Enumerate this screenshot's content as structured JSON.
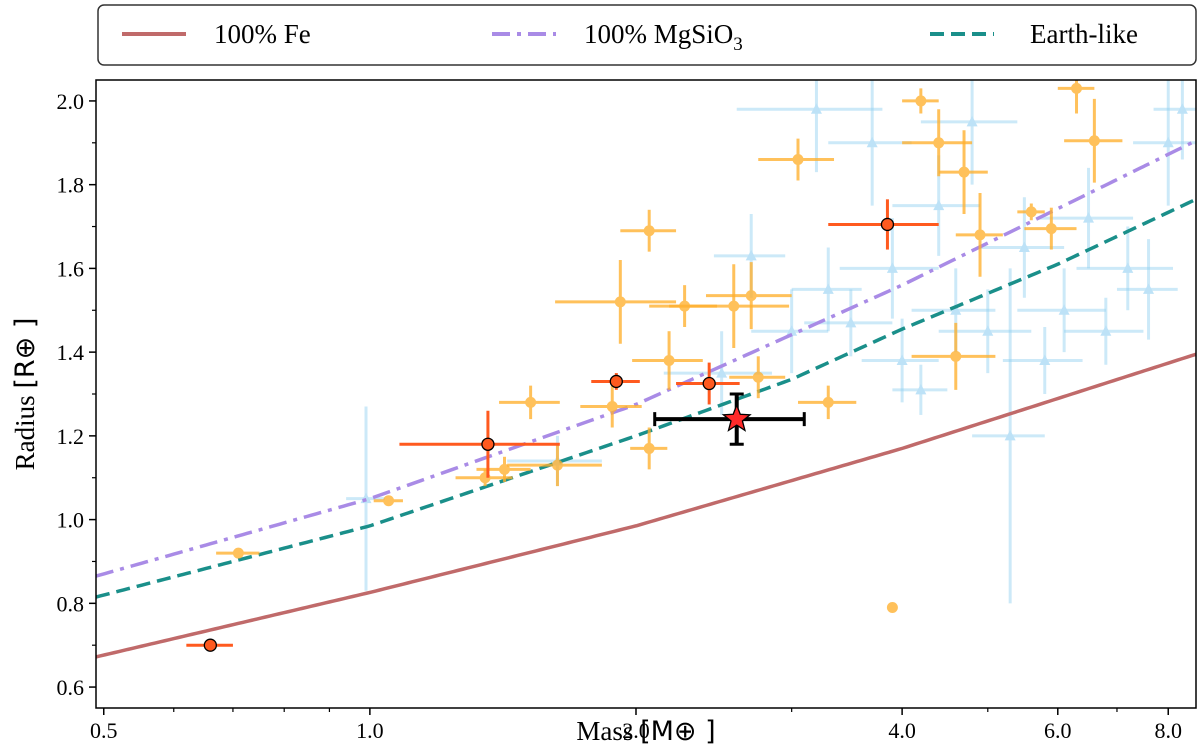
{
  "chart_data": {
    "type": "scatter",
    "x_scale": "log",
    "x_label_text": "Mass",
    "x_label_unit": "[M⊕ ]",
    "y_label_text": "Radius",
    "y_label_unit": "[R⊕ ]",
    "xlim": [
      0.49,
      8.6
    ],
    "ylim": [
      0.55,
      2.05
    ],
    "x_ticks": [
      {
        "value": 0.5,
        "label": "0.5"
      },
      {
        "value": 1.0,
        "label": "1.0"
      },
      {
        "value": 2.0,
        "label": "2.0"
      },
      {
        "value": 4.0,
        "label": "4.0"
      },
      {
        "value": 6.0,
        "label": "6.0"
      },
      {
        "value": 8.0,
        "label": "8.0"
      }
    ],
    "y_ticks": [
      {
        "value": 0.6,
        "label": "0.6"
      },
      {
        "value": 0.8,
        "label": "0.8"
      },
      {
        "value": 1.0,
        "label": "1.0"
      },
      {
        "value": 1.2,
        "label": "1.2"
      },
      {
        "value": 1.4,
        "label": "1.4"
      },
      {
        "value": 1.6,
        "label": "1.6"
      },
      {
        "value": 1.8,
        "label": "1.8"
      },
      {
        "value": 2.0,
        "label": "2.0"
      }
    ],
    "grid": false,
    "legend_position": "top, outside plot",
    "curves": [
      {
        "name": "100% Fe",
        "legend_label": "100% Fe",
        "color": "#c06a6a",
        "style": "solid",
        "points": [
          [
            0.49,
            0.672
          ],
          [
            1.0,
            0.826
          ],
          [
            2.0,
            0.985
          ],
          [
            4.0,
            1.17
          ],
          [
            8.6,
            1.395
          ]
        ]
      },
      {
        "name": "100% MgSiO3",
        "legend_base": "100% MgSiO",
        "legend_sub": "3",
        "color": "#a98be6",
        "style": "dashdot",
        "points": [
          [
            0.49,
            0.865
          ],
          [
            1.0,
            1.05
          ],
          [
            2.0,
            1.275
          ],
          [
            4.0,
            1.56
          ],
          [
            8.6,
            1.905
          ]
        ]
      },
      {
        "name": "Earth-like",
        "legend_label": "Earth-like",
        "color": "#1a8f8a",
        "style": "dashed",
        "points": [
          [
            0.49,
            0.815
          ],
          [
            1.0,
            0.985
          ],
          [
            2.0,
            1.2
          ],
          [
            3.0,
            1.335
          ],
          [
            4.0,
            1.455
          ],
          [
            6.0,
            1.61
          ],
          [
            8.6,
            1.765
          ]
        ]
      }
    ],
    "series_light_blue": {
      "color": "#8fd0f0",
      "points": [
        {
          "x": 0.99,
          "y": 1.05,
          "xerr": 0.05,
          "yerr": 0.22
        },
        {
          "x": 1.63,
          "y": 1.14,
          "xerr": 0.2,
          "yerr": 0.06
        },
        {
          "x": 2.5,
          "y": 1.35,
          "xerr": 0.35,
          "yerr": 0.1
        },
        {
          "x": 2.7,
          "y": 1.63,
          "xerr": 0.25,
          "yerr": 0.1
        },
        {
          "x": 3.0,
          "y": 1.45,
          "xerr": 0.3,
          "yerr": 0.1
        },
        {
          "x": 3.2,
          "y": 1.98,
          "xerr": 0.6,
          "yerr": 0.15
        },
        {
          "x": 3.3,
          "y": 1.55,
          "xerr": 0.3,
          "yerr": 0.1
        },
        {
          "x": 3.5,
          "y": 1.47,
          "xerr": 0.4,
          "yerr": 0.08
        },
        {
          "x": 3.7,
          "y": 1.9,
          "xerr": 0.4,
          "yerr": 0.15
        },
        {
          "x": 3.9,
          "y": 1.6,
          "xerr": 0.5,
          "yerr": 0.12
        },
        {
          "x": 4.0,
          "y": 1.38,
          "xerr": 0.4,
          "yerr": 0.1
        },
        {
          "x": 4.2,
          "y": 1.31,
          "xerr": 0.3,
          "yerr": 0.06
        },
        {
          "x": 4.4,
          "y": 1.75,
          "xerr": 0.5,
          "yerr": 0.12
        },
        {
          "x": 4.6,
          "y": 1.5,
          "xerr": 0.5,
          "yerr": 0.1
        },
        {
          "x": 4.8,
          "y": 1.95,
          "xerr": 0.6,
          "yerr": 0.15
        },
        {
          "x": 5.0,
          "y": 1.45,
          "xerr": 0.6,
          "yerr": 0.1
        },
        {
          "x": 5.3,
          "y": 1.2,
          "xerr": 0.5,
          "yerr": 0.4
        },
        {
          "x": 5.5,
          "y": 1.65,
          "xerr": 0.6,
          "yerr": 0.12
        },
        {
          "x": 5.8,
          "y": 1.38,
          "xerr": 0.6,
          "yerr": 0.08
        },
        {
          "x": 6.1,
          "y": 1.5,
          "xerr": 0.7,
          "yerr": 0.1
        },
        {
          "x": 6.5,
          "y": 1.72,
          "xerr": 0.8,
          "yerr": 0.12
        },
        {
          "x": 6.8,
          "y": 1.45,
          "xerr": 0.7,
          "yerr": 0.08
        },
        {
          "x": 7.2,
          "y": 1.6,
          "xerr": 0.9,
          "yerr": 0.1
        },
        {
          "x": 7.6,
          "y": 1.55,
          "xerr": 0.6,
          "yerr": 0.12
        },
        {
          "x": 8.0,
          "y": 1.9,
          "xerr": 0.7,
          "yerr": 0.15
        },
        {
          "x": 8.3,
          "y": 1.98,
          "xerr": 0.6,
          "yerr": 0.12
        }
      ]
    },
    "series_orange": {
      "color": "#ffb02e",
      "points": [
        {
          "x": 0.71,
          "y": 0.92,
          "xerr": 0.04,
          "yerr": 0.01
        },
        {
          "x": 1.05,
          "y": 1.045,
          "xerr": 0.04,
          "yerr": 0.01
        },
        {
          "x": 1.35,
          "y": 1.1,
          "xerr": 0.1,
          "yerr": 0.02
        },
        {
          "x": 1.42,
          "y": 1.12,
          "xerr": 0.1,
          "yerr": 0.03
        },
        {
          "x": 1.52,
          "y": 1.28,
          "xerr": 0.12,
          "yerr": 0.04
        },
        {
          "x": 1.63,
          "y": 1.13,
          "xerr": 0.2,
          "yerr": 0.05
        },
        {
          "x": 1.88,
          "y": 1.27,
          "xerr": 0.15,
          "yerr": 0.05
        },
        {
          "x": 1.92,
          "y": 1.52,
          "xerr": 0.3,
          "yerr": 0.1
        },
        {
          "x": 2.07,
          "y": 1.69,
          "xerr": 0.15,
          "yerr": 0.05
        },
        {
          "x": 2.07,
          "y": 1.17,
          "xerr": 0.1,
          "yerr": 0.05
        },
        {
          "x": 2.18,
          "y": 1.38,
          "xerr": 0.2,
          "yerr": 0.07
        },
        {
          "x": 2.27,
          "y": 1.51,
          "xerr": 0.2,
          "yerr": 0.05
        },
        {
          "x": 2.58,
          "y": 1.51,
          "xerr": 0.4,
          "yerr": 0.1
        },
        {
          "x": 2.7,
          "y": 1.535,
          "xerr": 0.3,
          "yerr": 0.08
        },
        {
          "x": 2.75,
          "y": 1.34,
          "xerr": 0.2,
          "yerr": 0.05
        },
        {
          "x": 3.05,
          "y": 1.86,
          "xerr": 0.3,
          "yerr": 0.05
        },
        {
          "x": 3.3,
          "y": 1.28,
          "xerr": 0.25,
          "yerr": 0.04
        },
        {
          "x": 3.9,
          "y": 0.79,
          "xerr": 0.03,
          "yerr": 0.01
        },
        {
          "x": 4.2,
          "y": 2.0,
          "xerr": 0.2,
          "yerr": 0.03
        },
        {
          "x": 4.4,
          "y": 1.9,
          "xerr": 0.4,
          "yerr": 0.08
        },
        {
          "x": 4.6,
          "y": 1.39,
          "xerr": 0.5,
          "yerr": 0.08
        },
        {
          "x": 4.7,
          "y": 1.83,
          "xerr": 0.3,
          "yerr": 0.1
        },
        {
          "x": 4.9,
          "y": 1.68,
          "xerr": 0.3,
          "yerr": 0.1
        },
        {
          "x": 5.6,
          "y": 1.735,
          "xerr": 0.2,
          "yerr": 0.02
        },
        {
          "x": 5.9,
          "y": 1.695,
          "xerr": 0.4,
          "yerr": 0.05
        },
        {
          "x": 6.3,
          "y": 2.03,
          "xerr": 0.3,
          "yerr": 0.06
        },
        {
          "x": 6.6,
          "y": 1.905,
          "xerr": 0.5,
          "yerr": 0.1
        }
      ]
    },
    "series_red": {
      "color": "#ff5a1f",
      "points": [
        {
          "x": 0.66,
          "y": 0.7,
          "xerr": 0.04,
          "yerr": 0.01
        },
        {
          "x": 1.36,
          "y": 1.18,
          "xerr": 0.28,
          "yerr": 0.08
        },
        {
          "x": 1.9,
          "y": 1.33,
          "xerr": 0.12,
          "yerr": 0.02
        },
        {
          "x": 2.42,
          "y": 1.325,
          "xerr": 0.2,
          "yerr": 0.05
        },
        {
          "x": 3.85,
          "y": 1.705,
          "xerr": 0.55,
          "yerr": 0.06
        }
      ]
    },
    "highlight_star": {
      "x": 2.6,
      "y": 1.24,
      "xerr": 0.5,
      "yerr": 0.06,
      "color": "#ff2a2a",
      "errcolor": "#000000"
    }
  }
}
